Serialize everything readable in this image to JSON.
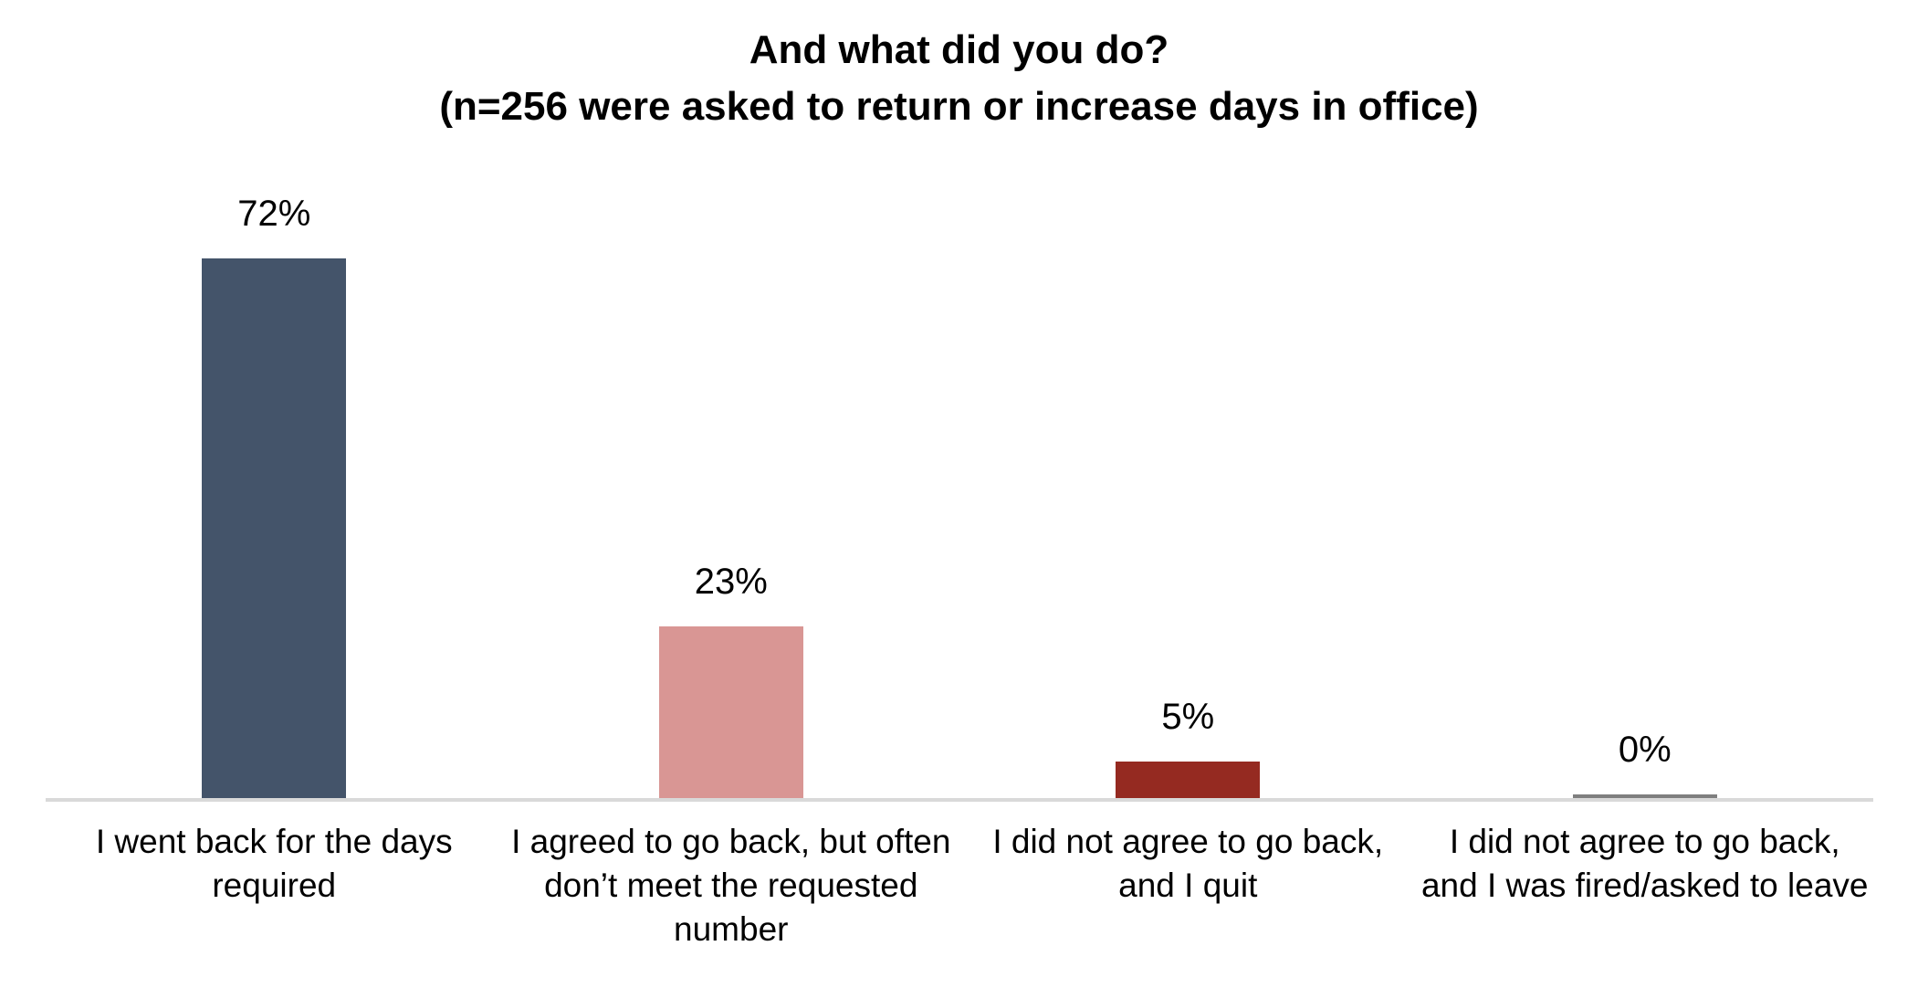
{
  "chart_data": {
    "type": "bar",
    "title": "And what did you do?",
    "subtitle": "(n=256 were asked to return or increase days in office)",
    "categories": [
      "I went back for the days required",
      "I agreed to go back, but often don’t meet the requested number",
      "I did not agree to go back, and I quit",
      "I did not agree to go back, and I was fired/asked to leave"
    ],
    "values": [
      72,
      23,
      5,
      0
    ],
    "value_labels": [
      "72%",
      "23%",
      "5%",
      "0%"
    ],
    "bar_colors": [
      "#44546A",
      "#D99694",
      "#952A21",
      "#7F7F7F"
    ],
    "axis_line_color": "#D9D9D9",
    "xlabel": "",
    "ylabel": "",
    "ylim": [
      0,
      80
    ],
    "grid": false,
    "legend": false,
    "data_labels": "above-bars",
    "background_color": "#FFFFFF"
  }
}
